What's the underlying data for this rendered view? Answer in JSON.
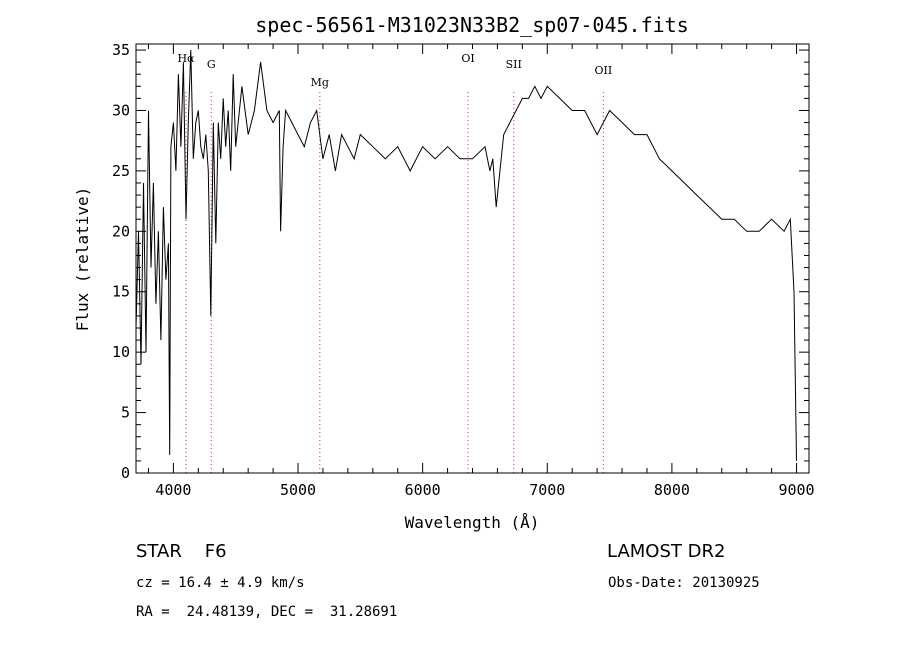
{
  "chart_data": {
    "type": "line",
    "title": "spec-56561-M31023N33B2_sp07-045.fits",
    "xlabel": "Wavelength (Å)",
    "ylabel": "Flux (relative)",
    "xlim": [
      3700,
      9100
    ],
    "ylim": [
      0,
      35.5
    ],
    "grid": false,
    "x_ticks": [
      4000,
      5000,
      6000,
      7000,
      8000,
      9000
    ],
    "y_ticks": [
      0,
      5,
      10,
      15,
      20,
      25,
      30,
      35
    ],
    "x_tick_labels": [
      "4000",
      "5000",
      "6000",
      "7000",
      "8000",
      "9000"
    ],
    "y_tick_labels": [
      "0",
      "5",
      "10",
      "15",
      "20",
      "25",
      "30",
      "35"
    ],
    "series": [
      {
        "x": [
          3700,
          3720,
          3740,
          3760,
          3780,
          3800,
          3820,
          3840,
          3860,
          3880,
          3900,
          3920,
          3940,
          3960,
          3970,
          3980,
          4000,
          4020,
          4040,
          4060,
          4080,
          4101,
          4120,
          4140,
          4160,
          4180,
          4200,
          4220,
          4240,
          4260,
          4280,
          4300,
          4320,
          4340,
          4360,
          4380,
          4400,
          4420,
          4440,
          4460,
          4480,
          4500,
          4550,
          4600,
          4650,
          4700,
          4750,
          4800,
          4850,
          4860,
          4880,
          4900,
          4950,
          5000,
          5050,
          5100,
          5150,
          5200,
          5250,
          5300,
          5350,
          5400,
          5450,
          5500,
          5600,
          5700,
          5800,
          5900,
          6000,
          6100,
          6200,
          6300,
          6400,
          6500,
          6540,
          6563,
          6590,
          6650,
          6700,
          6750,
          6800,
          6850,
          6900,
          6950,
          7000,
          7100,
          7200,
          7300,
          7400,
          7500,
          7600,
          7700,
          7800,
          7900,
          8000,
          8100,
          8200,
          8300,
          8400,
          8500,
          8600,
          8700,
          8800,
          8900,
          8950,
          8980,
          9000
        ],
        "y": [
          12,
          20,
          9,
          24,
          10,
          30,
          17,
          24,
          14,
          20,
          11,
          22,
          16,
          19,
          1.5,
          27,
          29,
          25,
          33,
          27,
          34,
          21,
          29,
          35,
          26,
          29,
          30,
          27,
          26,
          28,
          25,
          13,
          29,
          19,
          29,
          26,
          31,
          27,
          30,
          25,
          33,
          27,
          32,
          28,
          30,
          34,
          30,
          29,
          30,
          20,
          27,
          30,
          29,
          28,
          27,
          29,
          30,
          26,
          28,
          25,
          28,
          27,
          26,
          28,
          27,
          26,
          27,
          25,
          27,
          26,
          27,
          26,
          26,
          27,
          25,
          26,
          22,
          28,
          29,
          30,
          31,
          31,
          32,
          31,
          32,
          31,
          30,
          30,
          28,
          30,
          29,
          28,
          28,
          26,
          25,
          24,
          23,
          22,
          21,
          21,
          20,
          20,
          21,
          20,
          21,
          15,
          1
        ]
      }
    ],
    "lines": [
      {
        "label": "Hα",
        "x": 4101
      },
      {
        "label": "G",
        "x": 4304
      },
      {
        "label": "Mg",
        "x": 5175
      },
      {
        "label": "OI",
        "x": 6364
      },
      {
        "label": "SII",
        "x": 6731
      },
      {
        "label": "OII",
        "x": 7450
      }
    ],
    "annotations": {
      "object": "STAR    F6",
      "survey": "LAMOST DR2",
      "cz": "cz = 16.4 ± 4.9 km/s",
      "obs_date": "Obs-Date: 20130925",
      "coords": "RA =  24.48139, DEC =  31.28691"
    },
    "colors": {
      "spectrum": "#000000",
      "line_markers": "#cc3333",
      "axes": "#000000",
      "background": "#ffffff"
    }
  }
}
